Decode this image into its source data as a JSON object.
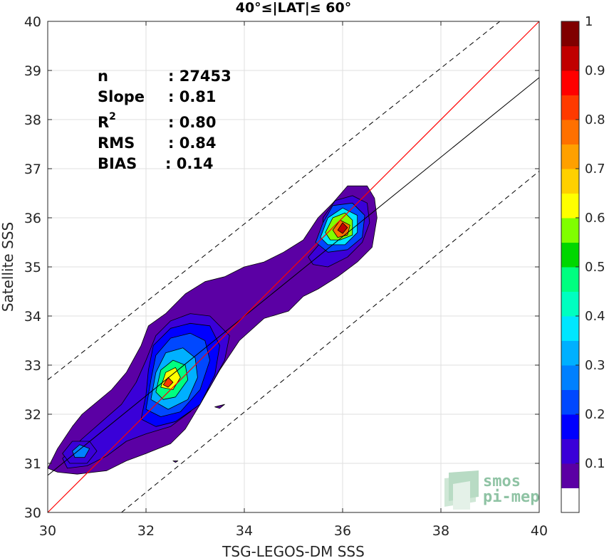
{
  "chart_data": {
    "type": "density-scatter",
    "title": "40°≤|LAT|≤ 60°",
    "xlabel": "TSG-LEGOS-DM SSS",
    "ylabel": "Satellite SSS",
    "xlim": [
      30,
      40
    ],
    "ylim": [
      30,
      40
    ],
    "x_ticks": [
      "30",
      "32",
      "34",
      "36",
      "38",
      "40"
    ],
    "y_ticks": [
      "30",
      "31",
      "32",
      "33",
      "34",
      "35",
      "36",
      "37",
      "38",
      "39",
      "40"
    ],
    "grid": true,
    "stats": [
      {
        "key": "n",
        "value": ": 27453"
      },
      {
        "key": "Slope",
        "value": ": 0.81"
      },
      {
        "key": "R",
        "sup": "2",
        "value": ": 0.80"
      },
      {
        "key": "RMS",
        "value": ": 0.84"
      },
      {
        "key": "BIAS",
        "value": ": 0.14"
      }
    ],
    "lines": {
      "identity": {
        "x": [
          30,
          40
        ],
        "y": [
          30,
          40
        ],
        "color": "#ff0000"
      },
      "fit": {
        "x": [
          30,
          40
        ],
        "y": [
          30.755,
          38.855
        ],
        "color": "#000000"
      },
      "upper_dashed": {
        "x": [
          30,
          39.2
        ],
        "y": [
          32.7,
          40
        ],
        "style": "dashed"
      },
      "lower_dashed": {
        "x": [
          31.5,
          40
        ],
        "y": [
          30,
          36.95
        ],
        "style": "dashed"
      }
    },
    "colorbar": {
      "ticks": [
        "0.1",
        "0.2",
        "0.3",
        "0.4",
        "0.5",
        "0.6",
        "0.7",
        "0.8",
        "0.9",
        "1"
      ],
      "colors": [
        "#ffffff",
        "#5b00a4",
        "#3a00d8",
        "#0000ff",
        "#0048ff",
        "#0080ff",
        "#00b0ff",
        "#00e6ff",
        "#00ffc0",
        "#00ff80",
        "#00d700",
        "#80ff00",
        "#ffff00",
        "#ffd000",
        "#ffa000",
        "#ff7000",
        "#ff3a00",
        "#ff0000",
        "#c00000",
        "#800000"
      ]
    },
    "density_regions": [
      {
        "level": 1,
        "points": [
          [
            30.0,
            30.9
          ],
          [
            30.2,
            31.3
          ],
          [
            30.5,
            31.75
          ],
          [
            30.7,
            32.0
          ],
          [
            31.0,
            32.25
          ],
          [
            31.3,
            32.5
          ],
          [
            31.6,
            32.85
          ],
          [
            31.9,
            33.4
          ],
          [
            32.05,
            33.8
          ],
          [
            32.4,
            34.05
          ],
          [
            32.8,
            34.45
          ],
          [
            33.2,
            34.7
          ],
          [
            33.6,
            34.8
          ],
          [
            34.0,
            35.0
          ],
          [
            34.4,
            35.1
          ],
          [
            34.8,
            35.3
          ],
          [
            35.2,
            35.55
          ],
          [
            35.5,
            36.0
          ],
          [
            35.8,
            36.3
          ],
          [
            36.1,
            36.65
          ],
          [
            36.5,
            36.65
          ],
          [
            36.65,
            36.4
          ],
          [
            36.7,
            36.0
          ],
          [
            36.6,
            35.4
          ],
          [
            36.3,
            35.1
          ],
          [
            35.9,
            34.8
          ],
          [
            35.5,
            34.55
          ],
          [
            35.2,
            34.4
          ],
          [
            34.9,
            34.1
          ],
          [
            34.4,
            33.95
          ],
          [
            33.9,
            33.5
          ],
          [
            33.5,
            32.9
          ],
          [
            33.1,
            32.2
          ],
          [
            32.8,
            31.7
          ],
          [
            32.5,
            31.4
          ],
          [
            32.0,
            31.2
          ],
          [
            31.6,
            31.05
          ],
          [
            31.2,
            30.85
          ],
          [
            30.6,
            30.78
          ],
          [
            30.2,
            30.82
          ]
        ]
      },
      {
        "level": 2,
        "points": [
          [
            30.3,
            31.1
          ],
          [
            30.7,
            31.5
          ],
          [
            31.1,
            31.85
          ],
          [
            31.5,
            32.2
          ],
          [
            31.8,
            32.65
          ],
          [
            32.0,
            33.1
          ],
          [
            32.2,
            33.6
          ],
          [
            32.5,
            33.9
          ],
          [
            32.9,
            34.05
          ],
          [
            33.3,
            34.0
          ],
          [
            33.7,
            33.6
          ],
          [
            33.6,
            33.1
          ],
          [
            33.3,
            32.55
          ],
          [
            32.9,
            32.05
          ],
          [
            32.5,
            31.75
          ],
          [
            32.0,
            31.6
          ],
          [
            31.6,
            31.45
          ],
          [
            31.2,
            31.15
          ],
          [
            30.8,
            30.95
          ],
          [
            30.4,
            30.9
          ]
        ]
      },
      {
        "level": 3,
        "points": [
          [
            31.9,
            31.9
          ],
          [
            32.0,
            32.4
          ],
          [
            32.05,
            32.9
          ],
          [
            32.15,
            33.4
          ],
          [
            32.5,
            33.75
          ],
          [
            32.9,
            33.85
          ],
          [
            33.3,
            33.8
          ],
          [
            33.5,
            33.4
          ],
          [
            33.4,
            32.8
          ],
          [
            33.1,
            32.2
          ],
          [
            32.6,
            31.85
          ],
          [
            32.2,
            31.75
          ]
        ]
      },
      {
        "level": 4,
        "points": [
          [
            32.0,
            32.1
          ],
          [
            32.1,
            32.7
          ],
          [
            32.2,
            33.2
          ],
          [
            32.5,
            33.55
          ],
          [
            32.9,
            33.65
          ],
          [
            33.2,
            33.5
          ],
          [
            33.3,
            33.1
          ],
          [
            33.1,
            32.5
          ],
          [
            32.7,
            32.05
          ],
          [
            32.3,
            31.95
          ]
        ]
      },
      {
        "level": 6,
        "points": [
          [
            32.1,
            32.3
          ],
          [
            32.2,
            32.85
          ],
          [
            32.4,
            33.25
          ],
          [
            32.75,
            33.35
          ],
          [
            33.0,
            33.15
          ],
          [
            33.05,
            32.75
          ],
          [
            32.85,
            32.3
          ],
          [
            32.45,
            32.1
          ]
        ]
      },
      {
        "level": 9,
        "points": [
          [
            32.2,
            32.45
          ],
          [
            32.3,
            32.9
          ],
          [
            32.55,
            33.1
          ],
          [
            32.8,
            33.0
          ],
          [
            32.85,
            32.7
          ],
          [
            32.6,
            32.35
          ],
          [
            32.35,
            32.3
          ]
        ]
      },
      {
        "level": 12,
        "points": [
          [
            32.3,
            32.55
          ],
          [
            32.4,
            32.85
          ],
          [
            32.6,
            32.95
          ],
          [
            32.7,
            32.75
          ],
          [
            32.55,
            32.5
          ]
        ]
      },
      {
        "level": 16,
        "points": [
          [
            32.35,
            32.6
          ],
          [
            32.45,
            32.75
          ],
          [
            32.55,
            32.65
          ],
          [
            32.45,
            32.55
          ]
        ]
      },
      {
        "level": 2,
        "points": [
          [
            35.3,
            35.2
          ],
          [
            35.6,
            35.55
          ],
          [
            35.6,
            36.0
          ],
          [
            35.85,
            36.35
          ],
          [
            36.2,
            36.45
          ],
          [
            36.5,
            36.3
          ],
          [
            36.55,
            35.9
          ],
          [
            36.4,
            35.5
          ],
          [
            36.1,
            35.2
          ],
          [
            35.7,
            35.0
          ],
          [
            35.4,
            35.05
          ]
        ]
      },
      {
        "level": 4,
        "points": [
          [
            35.45,
            35.5
          ],
          [
            35.6,
            35.9
          ],
          [
            35.8,
            36.25
          ],
          [
            36.2,
            36.3
          ],
          [
            36.45,
            36.05
          ],
          [
            36.4,
            35.6
          ],
          [
            36.1,
            35.35
          ],
          [
            35.7,
            35.3
          ]
        ]
      },
      {
        "level": 7,
        "points": [
          [
            35.55,
            35.6
          ],
          [
            35.7,
            36.0
          ],
          [
            36.0,
            36.2
          ],
          [
            36.3,
            36.05
          ],
          [
            36.3,
            35.7
          ],
          [
            36.05,
            35.45
          ],
          [
            35.7,
            35.45
          ]
        ]
      },
      {
        "level": 11,
        "points": [
          [
            35.65,
            35.7
          ],
          [
            35.8,
            36.0
          ],
          [
            36.05,
            36.1
          ],
          [
            36.2,
            35.95
          ],
          [
            36.2,
            35.65
          ],
          [
            35.95,
            35.55
          ],
          [
            35.75,
            35.55
          ]
        ]
      },
      {
        "level": 15,
        "points": [
          [
            35.8,
            35.75
          ],
          [
            35.95,
            35.95
          ],
          [
            36.15,
            35.85
          ],
          [
            36.1,
            35.65
          ],
          [
            35.9,
            35.6
          ]
        ]
      },
      {
        "level": 18,
        "points": [
          [
            35.9,
            35.75
          ],
          [
            36.0,
            35.9
          ],
          [
            36.1,
            35.8
          ],
          [
            36.0,
            35.68
          ]
        ]
      },
      {
        "level": 2,
        "points": [
          [
            30.3,
            31.2
          ],
          [
            30.5,
            31.45
          ],
          [
            30.85,
            31.45
          ],
          [
            31.0,
            31.25
          ],
          [
            30.8,
            31.0
          ],
          [
            30.45,
            31.0
          ]
        ]
      },
      {
        "level": 5,
        "points": [
          [
            30.5,
            31.25
          ],
          [
            30.65,
            31.38
          ],
          [
            30.85,
            31.3
          ],
          [
            30.75,
            31.12
          ],
          [
            30.55,
            31.12
          ]
        ]
      },
      {
        "level": 1,
        "points": [
          [
            33.4,
            32.15
          ],
          [
            33.6,
            32.2
          ],
          [
            33.5,
            32.12
          ]
        ]
      },
      {
        "level": 1,
        "points": [
          [
            32.55,
            31.05
          ],
          [
            32.65,
            31.05
          ],
          [
            32.6,
            31.02
          ]
        ]
      }
    ]
  },
  "watermark": {
    "line1": "smos",
    "line2": "pi-mep"
  }
}
